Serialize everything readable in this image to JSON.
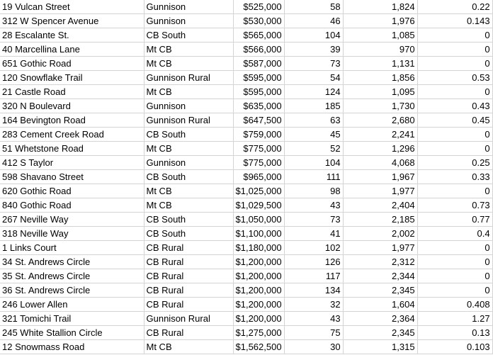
{
  "spreadsheet": {
    "rows": [
      [
        "19 Vulcan Street",
        "Gunnison",
        "$525,000",
        "58",
        "1,824",
        "0.22"
      ],
      [
        "312 W Spencer Avenue",
        "Gunnison",
        "$530,000",
        "46",
        "1,976",
        "0.143"
      ],
      [
        "28 Escalante St.",
        "CB South",
        "$565,000",
        "104",
        "1,085",
        "0"
      ],
      [
        "40 Marcellina Lane",
        "Mt CB",
        "$566,000",
        "39",
        "970",
        "0"
      ],
      [
        "651 Gothic Road",
        "Mt CB",
        "$587,000",
        "73",
        "1,131",
        "0"
      ],
      [
        "120 Snowflake Trail",
        "Gunnison Rural",
        "$595,000",
        "54",
        "1,856",
        "0.53"
      ],
      [
        "21 Castle Road",
        "Mt CB",
        "$595,000",
        "124",
        "1,095",
        "0"
      ],
      [
        "320 N Boulevard",
        "Gunnison",
        "$635,000",
        "185",
        "1,730",
        "0.43"
      ],
      [
        "164 Bevington Road",
        "Gunnison Rural",
        "$647,500",
        "63",
        "2,680",
        "0.45"
      ],
      [
        "283 Cement Creek Road",
        "CB South",
        "$759,000",
        "45",
        "2,241",
        "0"
      ],
      [
        "51 Whetstone Road",
        "Mt CB",
        "$775,000",
        "52",
        "1,296",
        "0"
      ],
      [
        "412 S Taylor",
        "Gunnison",
        "$775,000",
        "104",
        "4,068",
        "0.25"
      ],
      [
        "598 Shavano Street",
        "CB South",
        "$965,000",
        "111",
        "1,967",
        "0.33"
      ],
      [
        "620 Gothic Road",
        "Mt CB",
        "$1,025,000",
        "98",
        "1,977",
        "0"
      ],
      [
        "840 Gothic Road",
        "Mt CB",
        "$1,029,500",
        "43",
        "2,404",
        "0.73"
      ],
      [
        "267 Neville Way",
        "CB South",
        "$1,050,000",
        "73",
        "2,185",
        "0.77"
      ],
      [
        "318 Neville Way",
        "CB South",
        "$1,100,000",
        "41",
        "2,002",
        "0.4"
      ],
      [
        "1 Links Court",
        "CB Rural",
        "$1,180,000",
        "102",
        "1,977",
        "0"
      ],
      [
        "34 St. Andrews Circle",
        "CB Rural",
        "$1,200,000",
        "126",
        "2,312",
        "0"
      ],
      [
        "35 St. Andrews Circle",
        "CB Rural",
        "$1,200,000",
        "117",
        "2,344",
        "0"
      ],
      [
        "36 St. Andrews Circle",
        "CB Rural",
        "$1,200,000",
        "134",
        "2,345",
        "0"
      ],
      [
        "246 Lower Allen",
        "CB Rural",
        "$1,200,000",
        "32",
        "1,604",
        "0.408"
      ],
      [
        "321 Tomichi Trail",
        "Gunnison Rural",
        "$1,200,000",
        "43",
        "2,364",
        "1.27"
      ],
      [
        "245 White Stallion Circle",
        "CB Rural",
        "$1,275,000",
        "75",
        "2,345",
        "0.13"
      ],
      [
        "12 Snowmass Road",
        "Mt CB",
        "$1,562,500",
        "30",
        "1,315",
        "0.103"
      ]
    ]
  }
}
